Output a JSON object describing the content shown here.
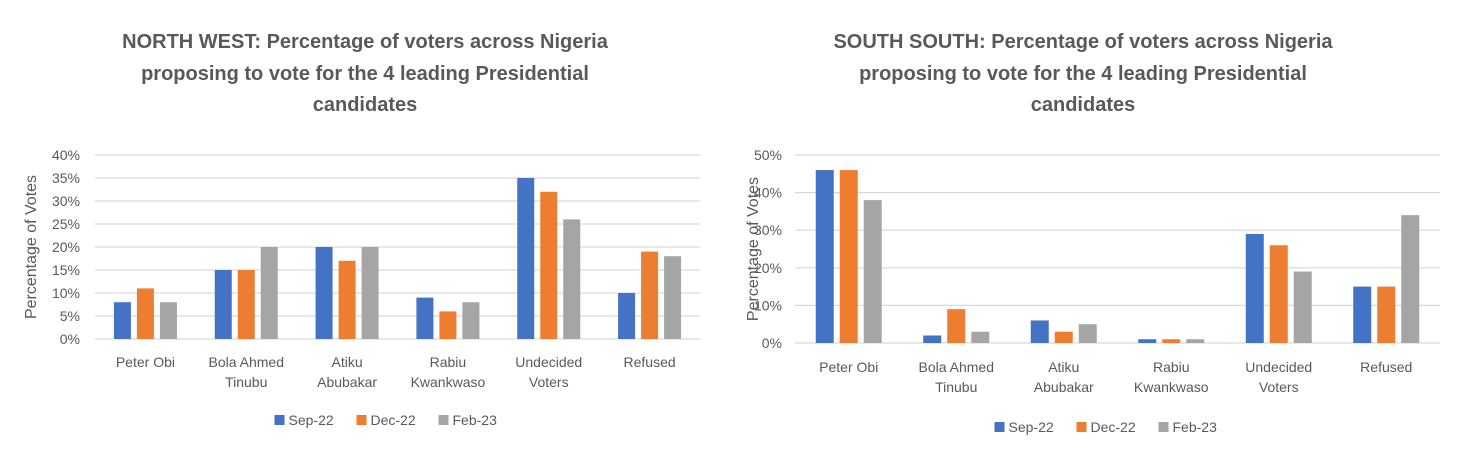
{
  "colors": {
    "Sep-22": "#4472C4",
    "Dec-22": "#ED7D31",
    "Feb-23": "#A5A5A5",
    "grid": "#D9D9D9"
  },
  "chart_data": [
    {
      "type": "bar",
      "title": [
        "NORTH WEST: Percentage of voters across Nigeria",
        "proposing to vote for the 4 leading Presidential",
        "candidates"
      ],
      "ylabel": "Percentage of Votes",
      "xlabel": "",
      "ylim": [
        0,
        40
      ],
      "yticks": [
        0,
        5,
        10,
        15,
        20,
        25,
        30,
        35,
        40
      ],
      "ytick_labels": [
        "0%",
        "5%",
        "10%",
        "15%",
        "20%",
        "25%",
        "30%",
        "35%",
        "40%"
      ],
      "grid": true,
      "legend": "bottom",
      "categories": [
        [
          "Peter Obi"
        ],
        [
          "Bola Ahmed",
          "Tinubu"
        ],
        [
          "Atiku",
          "Abubakar"
        ],
        [
          "Rabiu",
          "Kwankwaso"
        ],
        [
          "Undecided",
          "Voters"
        ],
        [
          "Refused"
        ]
      ],
      "series": [
        {
          "name": "Sep-22",
          "values": [
            8,
            15,
            20,
            9,
            35,
            10
          ]
        },
        {
          "name": "Dec-22",
          "values": [
            11,
            15,
            17,
            6,
            32,
            19
          ]
        },
        {
          "name": "Feb-23",
          "values": [
            8,
            20,
            20,
            8,
            26,
            18
          ]
        }
      ]
    },
    {
      "type": "bar",
      "title": [
        "SOUTH SOUTH: Percentage of voters across Nigeria",
        "proposing to vote for the 4 leading Presidential",
        "candidates"
      ],
      "ylabel": "Percentage of Votes",
      "xlabel": "",
      "ylim": [
        0,
        50
      ],
      "yticks": [
        0,
        10,
        20,
        30,
        40,
        50
      ],
      "ytick_labels": [
        "0%",
        "10%",
        "20%",
        "30%",
        "40%",
        "50%"
      ],
      "grid": true,
      "legend": "bottom",
      "categories": [
        [
          "Peter Obi"
        ],
        [
          "Bola Ahmed",
          "Tinubu"
        ],
        [
          "Atiku",
          "Abubakar"
        ],
        [
          "Rabiu",
          "Kwankwaso"
        ],
        [
          "Undecided",
          "Voters"
        ],
        [
          "Refused"
        ]
      ],
      "series": [
        {
          "name": "Sep-22",
          "values": [
            46,
            2,
            6,
            1,
            29,
            15
          ]
        },
        {
          "name": "Dec-22",
          "values": [
            46,
            9,
            3,
            1,
            26,
            15
          ]
        },
        {
          "name": "Feb-23",
          "values": [
            38,
            3,
            5,
            1,
            19,
            34
          ]
        }
      ]
    }
  ]
}
